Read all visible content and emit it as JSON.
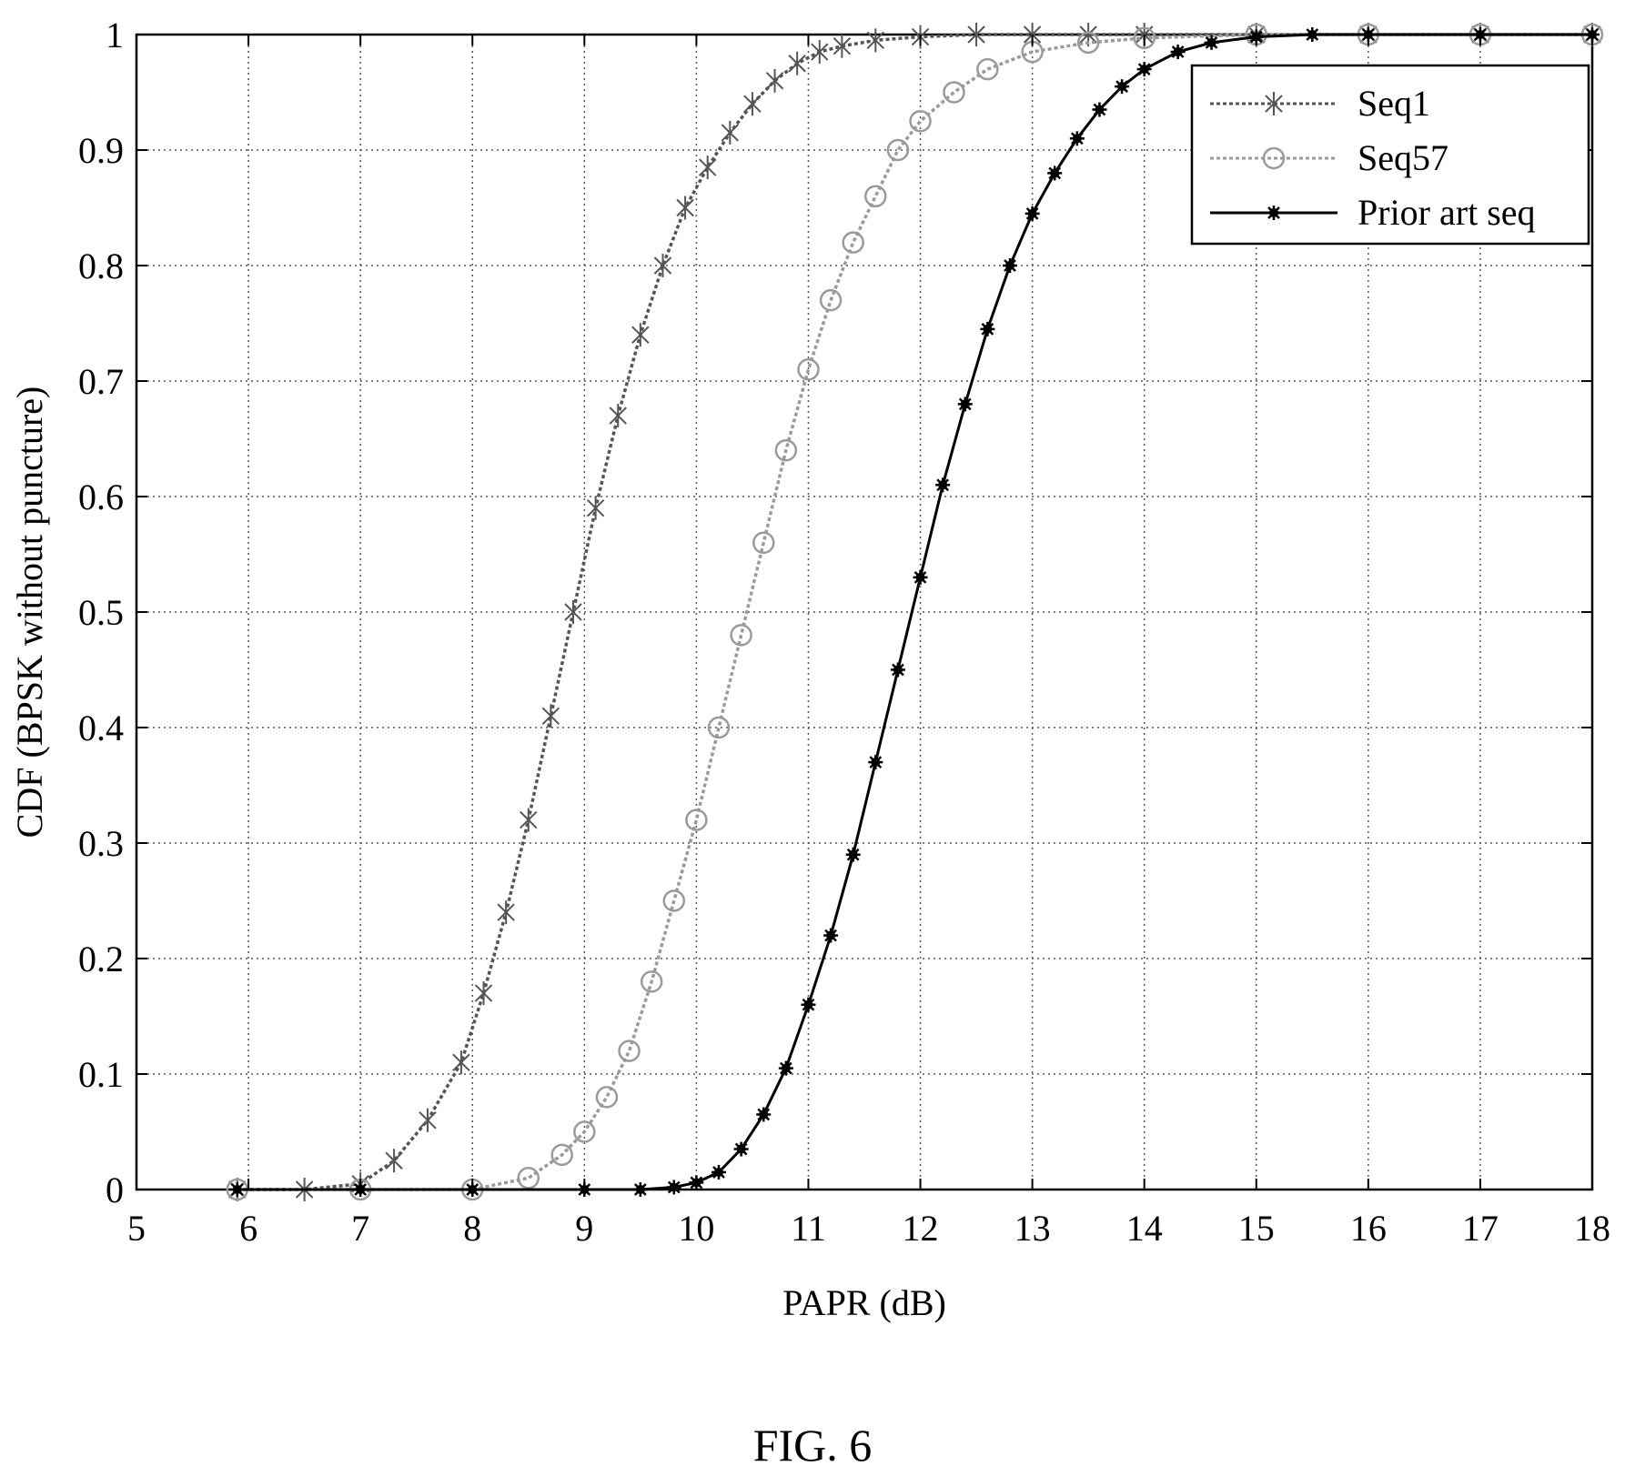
{
  "chart_data": {
    "type": "line",
    "xlabel": "PAPR (dB)",
    "ylabel": "CDF (BPSK without puncture)",
    "xlim": [
      5,
      18
    ],
    "ylim": [
      0,
      1
    ],
    "xticks": [
      "5",
      "6",
      "7",
      "8",
      "9",
      "10",
      "11",
      "12",
      "13",
      "14",
      "15",
      "16",
      "17",
      "18"
    ],
    "yticks": [
      "0",
      "0.1",
      "0.2",
      "0.3",
      "0.4",
      "0.5",
      "0.6",
      "0.7",
      "0.8",
      "0.9",
      "1"
    ],
    "grid": true,
    "legend_position": "top-right",
    "series": [
      {
        "name": "Seq1",
        "color": "#555555",
        "marker": "x-tick",
        "line_style": "dotted",
        "x": [
          5.9,
          6.5,
          7.0,
          7.3,
          7.6,
          7.9,
          8.1,
          8.3,
          8.5,
          8.7,
          8.9,
          9.1,
          9.3,
          9.5,
          9.7,
          9.9,
          10.1,
          10.3,
          10.5,
          10.7,
          10.9,
          11.1,
          11.3,
          11.6,
          12.0,
          12.5,
          13.0,
          13.5,
          14.0,
          15.0,
          16.0,
          17.0,
          18.0
        ],
        "y": [
          0.0,
          0.0,
          0.005,
          0.025,
          0.06,
          0.11,
          0.17,
          0.24,
          0.32,
          0.41,
          0.5,
          0.59,
          0.67,
          0.74,
          0.8,
          0.85,
          0.885,
          0.915,
          0.94,
          0.96,
          0.975,
          0.985,
          0.99,
          0.995,
          0.998,
          1.0,
          1.0,
          1.0,
          1.0,
          1.0,
          1.0,
          1.0,
          1.0
        ]
      },
      {
        "name": "Seq57",
        "color": "#9a9a9a",
        "marker": "circle",
        "line_style": "dotted",
        "x": [
          5.9,
          7.0,
          8.0,
          8.5,
          8.8,
          9.0,
          9.2,
          9.4,
          9.6,
          9.8,
          10.0,
          10.2,
          10.4,
          10.6,
          10.8,
          11.0,
          11.2,
          11.4,
          11.6,
          11.8,
          12.0,
          12.3,
          12.6,
          13.0,
          13.5,
          14.0,
          15.0,
          16.0,
          17.0,
          18.0
        ],
        "y": [
          0.0,
          0.0,
          0.0,
          0.01,
          0.03,
          0.05,
          0.08,
          0.12,
          0.18,
          0.25,
          0.32,
          0.4,
          0.48,
          0.56,
          0.64,
          0.71,
          0.77,
          0.82,
          0.86,
          0.9,
          0.925,
          0.95,
          0.97,
          0.985,
          0.993,
          0.997,
          1.0,
          1.0,
          1.0,
          1.0
        ]
      },
      {
        "name": "Prior art seq",
        "color": "#000000",
        "marker": "star",
        "line_style": "solid",
        "x": [
          5.9,
          7.0,
          8.0,
          9.0,
          9.5,
          9.8,
          10.0,
          10.2,
          10.4,
          10.6,
          10.8,
          11.0,
          11.2,
          11.4,
          11.6,
          11.8,
          12.0,
          12.2,
          12.4,
          12.6,
          12.8,
          13.0,
          13.2,
          13.4,
          13.6,
          13.8,
          14.0,
          14.3,
          14.6,
          15.0,
          15.5,
          16.0,
          17.0,
          18.0
        ],
        "y": [
          0.0,
          0.0,
          0.0,
          0.0,
          0.0,
          0.002,
          0.006,
          0.015,
          0.035,
          0.065,
          0.105,
          0.16,
          0.22,
          0.29,
          0.37,
          0.45,
          0.53,
          0.61,
          0.68,
          0.745,
          0.8,
          0.845,
          0.88,
          0.91,
          0.935,
          0.955,
          0.97,
          0.985,
          0.993,
          0.998,
          1.0,
          1.0,
          1.0,
          1.0
        ]
      }
    ]
  },
  "caption": "FIG. 6"
}
